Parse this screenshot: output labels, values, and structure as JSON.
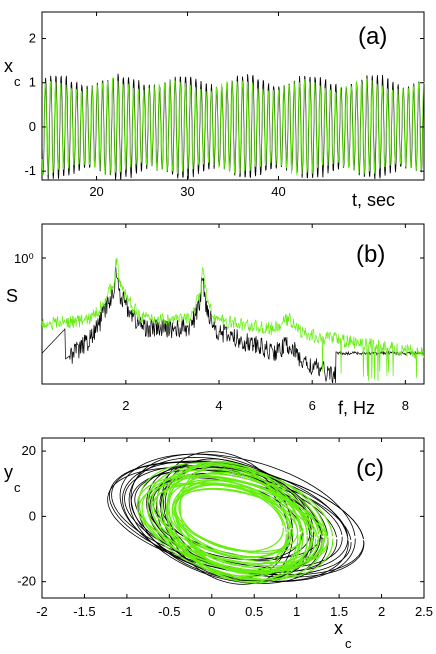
{
  "colors": {
    "series_black": "#000000",
    "series_green": "#66ee11",
    "axis": "#000000"
  },
  "chart_data": [
    {
      "type": "line",
      "panel": "(a)",
      "xlabel": "t, sec",
      "ylabel": "x",
      "ylabel_sub": "c",
      "xlim": [
        14,
        56
      ],
      "ylim": [
        -1.2,
        2.6
      ],
      "xticks": [
        20,
        30,
        40
      ],
      "yticks": [
        -1,
        0,
        1,
        2
      ],
      "signal": {
        "period_sec": 0.57,
        "amplitude_black": 1.05,
        "amplitude_green": 0.95
      },
      "series": [
        {
          "color": "black"
        },
        {
          "color": "green"
        }
      ]
    },
    {
      "type": "line",
      "panel": "(b)",
      "xlabel": "f, Hz",
      "ylabel": "S",
      "ylog": true,
      "xlim": [
        0.2,
        8.4
      ],
      "xticks": [
        2,
        4,
        6,
        8
      ],
      "ytick_labels": [
        "10⁰"
      ],
      "peaks_hz": [
        1.8,
        3.65,
        5.5
      ],
      "series": [
        {
          "color": "black"
        },
        {
          "color": "green"
        }
      ]
    },
    {
      "type": "line",
      "panel": "(c)",
      "xlabel": "x",
      "xlabel_sub": "c",
      "ylabel": "y",
      "ylabel_sub": "c",
      "xlim": [
        -2,
        2.5
      ],
      "ylim": [
        -25,
        24
      ],
      "xticks": [
        -2,
        -1.5,
        -1,
        -0.5,
        0,
        0.5,
        1,
        1.5,
        2,
        2.5
      ],
      "xtick_labels": [
        "-2",
        "-1.5",
        "-1",
        "-0.5",
        "0",
        "0.5",
        "1",
        "1.5",
        "2",
        "2.5"
      ],
      "yticks": [
        -20,
        0,
        20
      ],
      "series": [
        {
          "color": "black"
        },
        {
          "color": "green"
        }
      ]
    }
  ]
}
